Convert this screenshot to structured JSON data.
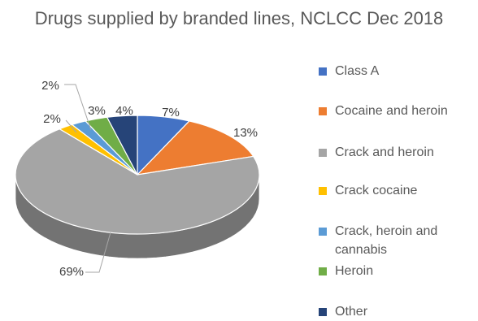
{
  "chart_data": {
    "type": "pie",
    "title": "Drugs supplied by branded lines, NCLCC Dec 2018",
    "categories": [
      "Class A",
      "Cocaine and heroin",
      "Crack and heroin",
      "Crack cocaine",
      "Crack, heroin and cannabis",
      "Heroin",
      "Other"
    ],
    "values": [
      7,
      13,
      69,
      2,
      2,
      3,
      4
    ],
    "labels": [
      "7%",
      "13%",
      "69%",
      "2%",
      "2%",
      "3%",
      "4%"
    ],
    "colors": [
      "#4472C4",
      "#ED7D31",
      "#A5A5A5",
      "#FFC000",
      "#5B9BD5",
      "#70AD47",
      "#264478"
    ],
    "legend_position": "right",
    "style": "3d"
  }
}
